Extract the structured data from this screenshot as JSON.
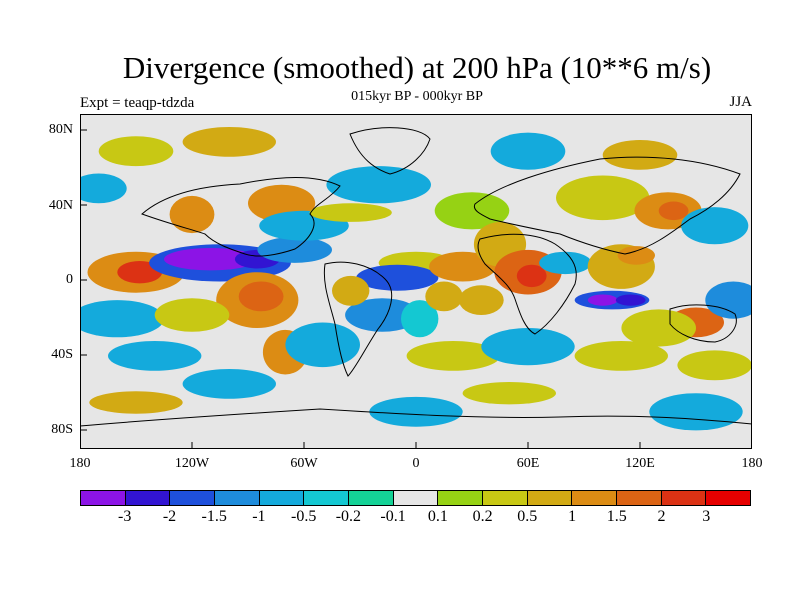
{
  "title": "Divergence (smoothed) at 200 hPa (10**6 m/s)",
  "subtitle": "015kyr BP - 000kyr BP",
  "experiment": "Expt = teaqp-tdzda",
  "season": "JJA",
  "map": {
    "lat_labels": [
      "80N",
      "40N",
      "0",
      "40S",
      "80S"
    ],
    "lon_labels": [
      "180",
      "120W",
      "60W",
      "0",
      "60E",
      "120E",
      "180"
    ],
    "background_color": "#e6e6e6",
    "blobs": [
      {
        "lon": -163,
        "lat": 6,
        "rlon": 10,
        "rlat": 5,
        "level": 12
      },
      {
        "lon": -150,
        "lat": 5,
        "rlon": 26,
        "rlat": 11,
        "level": 11
      },
      {
        "lon": -148,
        "lat": 5,
        "rlon": 12,
        "rlat": 6,
        "level": 13
      },
      {
        "lon": -105,
        "lat": 10,
        "rlon": 38,
        "rlat": 10,
        "level": 2
      },
      {
        "lon": -110,
        "lat": 12,
        "rlon": 25,
        "rlat": 6,
        "level": 0
      },
      {
        "lon": -85,
        "lat": 12,
        "rlon": 12,
        "rlat": 5,
        "level": 1
      },
      {
        "lon": -85,
        "lat": -10,
        "rlon": 22,
        "rlat": 15,
        "level": 11
      },
      {
        "lon": -83,
        "lat": -8,
        "rlon": 12,
        "rlat": 8,
        "level": 12
      },
      {
        "lon": -65,
        "lat": 17,
        "rlon": 20,
        "rlat": 7,
        "level": 3
      },
      {
        "lon": -120,
        "lat": 36,
        "rlon": 12,
        "rlat": 10,
        "level": 11
      },
      {
        "lon": -72,
        "lat": 42,
        "rlon": 18,
        "rlat": 10,
        "level": 11
      },
      {
        "lon": -60,
        "lat": 30,
        "rlon": 24,
        "rlat": 8,
        "level": 4
      },
      {
        "lon": -20,
        "lat": 52,
        "rlon": 28,
        "rlat": 10,
        "level": 4
      },
      {
        "lon": -35,
        "lat": 37,
        "rlon": 22,
        "rlat": 5,
        "level": 9
      },
      {
        "lon": 0,
        "lat": 10,
        "rlon": 20,
        "rlat": 6,
        "level": 9
      },
      {
        "lon": -10,
        "lat": 2,
        "rlon": 22,
        "rlat": 7,
        "level": 2
      },
      {
        "lon": -18,
        "lat": -18,
        "rlon": 20,
        "rlat": 9,
        "level": 3
      },
      {
        "lon": -35,
        "lat": -5,
        "rlon": 10,
        "rlat": 8,
        "level": 10
      },
      {
        "lon": 2,
        "lat": -20,
        "rlon": 10,
        "rlat": 10,
        "level": 5
      },
      {
        "lon": 15,
        "lat": -8,
        "rlon": 10,
        "rlat": 8,
        "level": 10
      },
      {
        "lon": 30,
        "lat": 38,
        "rlon": 20,
        "rlat": 10,
        "level": 8
      },
      {
        "lon": 25,
        "lat": 8,
        "rlon": 18,
        "rlat": 8,
        "level": 11
      },
      {
        "lon": 45,
        "lat": 20,
        "rlon": 14,
        "rlat": 12,
        "level": 10
      },
      {
        "lon": 60,
        "lat": 5,
        "rlon": 18,
        "rlat": 12,
        "level": 12
      },
      {
        "lon": 62,
        "lat": 3,
        "rlon": 8,
        "rlat": 6,
        "level": 13
      },
      {
        "lon": 35,
        "lat": -10,
        "rlon": 12,
        "rlat": 8,
        "level": 10
      },
      {
        "lon": 80,
        "lat": 10,
        "rlon": 14,
        "rlat": 6,
        "level": 4
      },
      {
        "lon": 100,
        "lat": 45,
        "rlon": 25,
        "rlat": 12,
        "level": 9
      },
      {
        "lon": 110,
        "lat": 8,
        "rlon": 18,
        "rlat": 12,
        "level": 10
      },
      {
        "lon": 118,
        "lat": 14,
        "rlon": 10,
        "rlat": 5,
        "level": 11
      },
      {
        "lon": 105,
        "lat": -10,
        "rlon": 20,
        "rlat": 5,
        "level": 2
      },
      {
        "lon": 100,
        "lat": -10,
        "rlon": 8,
        "rlat": 3,
        "level": 0
      },
      {
        "lon": 115,
        "lat": -10,
        "rlon": 8,
        "rlat": 3,
        "level": 1
      },
      {
        "lon": 135,
        "lat": 38,
        "rlon": 18,
        "rlat": 10,
        "level": 11
      },
      {
        "lon": 138,
        "lat": 38,
        "rlon": 8,
        "rlat": 5,
        "level": 12
      },
      {
        "lon": 160,
        "lat": 30,
        "rlon": 18,
        "rlat": 10,
        "level": 4
      },
      {
        "lon": 150,
        "lat": -22,
        "rlon": 15,
        "rlat": 8,
        "level": 12
      },
      {
        "lon": 130,
        "lat": -25,
        "rlon": 20,
        "rlat": 10,
        "level": 9
      },
      {
        "lon": 170,
        "lat": -10,
        "rlon": 15,
        "rlat": 10,
        "level": 3
      },
      {
        "lon": -160,
        "lat": -20,
        "rlon": 25,
        "rlat": 10,
        "level": 4
      },
      {
        "lon": -120,
        "lat": -18,
        "rlon": 20,
        "rlat": 9,
        "level": 9
      },
      {
        "lon": -70,
        "lat": -38,
        "rlon": 12,
        "rlat": 12,
        "level": 11
      },
      {
        "lon": -50,
        "lat": -34,
        "rlon": 20,
        "rlat": 12,
        "level": 4
      },
      {
        "lon": -140,
        "lat": -40,
        "rlon": 25,
        "rlat": 8,
        "level": 4
      },
      {
        "lon": 20,
        "lat": -40,
        "rlon": 25,
        "rlat": 8,
        "level": 9
      },
      {
        "lon": 60,
        "lat": -35,
        "rlon": 25,
        "rlat": 10,
        "level": 4
      },
      {
        "lon": 110,
        "lat": -40,
        "rlon": 25,
        "rlat": 8,
        "level": 9
      },
      {
        "lon": 160,
        "lat": -45,
        "rlon": 20,
        "rlat": 8,
        "level": 9
      },
      {
        "lon": -100,
        "lat": -55,
        "rlon": 25,
        "rlat": 8,
        "level": 4
      },
      {
        "lon": -150,
        "lat": -65,
        "rlon": 25,
        "rlat": 6,
        "level": 10
      },
      {
        "lon": 0,
        "lat": -70,
        "rlon": 25,
        "rlat": 8,
        "level": 4
      },
      {
        "lon": 50,
        "lat": -60,
        "rlon": 25,
        "rlat": 6,
        "level": 9
      },
      {
        "lon": 150,
        "lat": -70,
        "rlon": 25,
        "rlat": 10,
        "level": 4
      },
      {
        "lon": -150,
        "lat": 70,
        "rlon": 20,
        "rlat": 8,
        "level": 9
      },
      {
        "lon": -100,
        "lat": 75,
        "rlon": 25,
        "rlat": 8,
        "level": 10
      },
      {
        "lon": 60,
        "lat": 70,
        "rlon": 20,
        "rlat": 10,
        "level": 4
      },
      {
        "lon": 120,
        "lat": 68,
        "rlon": 20,
        "rlat": 8,
        "level": 10
      },
      {
        "lon": -170,
        "lat": 50,
        "rlon": 15,
        "rlat": 8,
        "level": 4
      }
    ]
  },
  "colorbar": {
    "colors": [
      "#8c14e6",
      "#3214d2",
      "#1e50dc",
      "#1e8cdc",
      "#14aadc",
      "#14c8d2",
      "#14d296",
      "#e6e6e6",
      "#96d214",
      "#c8c814",
      "#d2aa14",
      "#dc8c14",
      "#dc6414",
      "#dc3214",
      "#e60000"
    ],
    "labels": [
      "-3",
      "-2",
      "-1.5",
      "-1",
      "-0.5",
      "-0.2",
      "-0.1",
      "0.1",
      "0.2",
      "0.5",
      "1",
      "1.5",
      "2",
      "3"
    ]
  }
}
